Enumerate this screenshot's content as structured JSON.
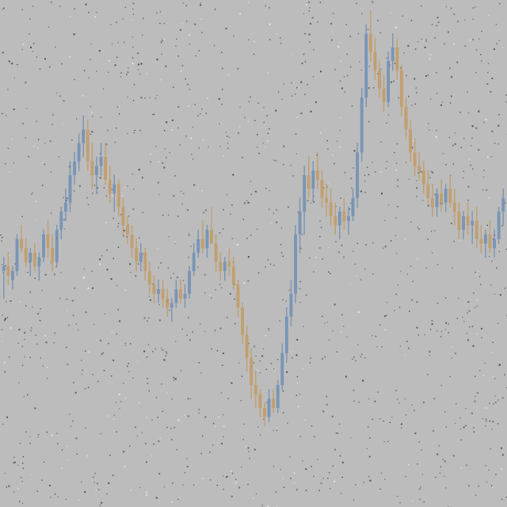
{
  "colors": {
    "background": "#bcbcbc",
    "noise": "#3a3a3a",
    "up": "#6f8fb4",
    "down": "#c29a62"
  },
  "chart_data": {
    "type": "candlestick",
    "title": "",
    "xlabel": "",
    "ylabel": "",
    "grid": false,
    "legend": "none",
    "ylim": [
      0,
      100
    ],
    "candles": [
      {
        "o": 42,
        "h": 45,
        "l": 36,
        "c": 43
      },
      {
        "o": 43,
        "h": 46,
        "l": 39,
        "c": 41
      },
      {
        "o": 40,
        "h": 43,
        "l": 38,
        "c": 42
      },
      {
        "o": 42,
        "h": 50,
        "l": 41,
        "c": 49
      },
      {
        "o": 49,
        "h": 52,
        "l": 46,
        "c": 47
      },
      {
        "o": 47,
        "h": 49,
        "l": 43,
        "c": 44
      },
      {
        "o": 44,
        "h": 47,
        "l": 41,
        "c": 46
      },
      {
        "o": 46,
        "h": 48,
        "l": 42,
        "c": 43
      },
      {
        "o": 43,
        "h": 46,
        "l": 40,
        "c": 45
      },
      {
        "o": 45,
        "h": 51,
        "l": 44,
        "c": 50
      },
      {
        "o": 50,
        "h": 53,
        "l": 45,
        "c": 47
      },
      {
        "o": 47,
        "h": 50,
        "l": 42,
        "c": 44
      },
      {
        "o": 44,
        "h": 52,
        "l": 43,
        "c": 51
      },
      {
        "o": 51,
        "h": 56,
        "l": 49,
        "c": 55
      },
      {
        "o": 55,
        "h": 60,
        "l": 53,
        "c": 57
      },
      {
        "o": 57,
        "h": 66,
        "l": 55,
        "c": 63
      },
      {
        "o": 63,
        "h": 68,
        "l": 61,
        "c": 66
      },
      {
        "o": 66,
        "h": 72,
        "l": 64,
        "c": 70
      },
      {
        "o": 70,
        "h": 76,
        "l": 67,
        "c": 73
      },
      {
        "o": 73,
        "h": 75,
        "l": 64,
        "c": 66
      },
      {
        "o": 66,
        "h": 70,
        "l": 60,
        "c": 63
      },
      {
        "o": 63,
        "h": 67,
        "l": 59,
        "c": 65
      },
      {
        "o": 65,
        "h": 70,
        "l": 63,
        "c": 67
      },
      {
        "o": 67,
        "h": 70,
        "l": 61,
        "c": 62
      },
      {
        "o": 62,
        "h": 65,
        "l": 57,
        "c": 59
      },
      {
        "o": 59,
        "h": 63,
        "l": 55,
        "c": 61
      },
      {
        "o": 61,
        "h": 62,
        "l": 54,
        "c": 56
      },
      {
        "o": 56,
        "h": 58,
        "l": 50,
        "c": 52
      },
      {
        "o": 52,
        "h": 54,
        "l": 48,
        "c": 50
      },
      {
        "o": 50,
        "h": 52,
        "l": 45,
        "c": 47
      },
      {
        "o": 47,
        "h": 49,
        "l": 42,
        "c": 44
      },
      {
        "o": 44,
        "h": 48,
        "l": 42,
        "c": 46
      },
      {
        "o": 46,
        "h": 47,
        "l": 40,
        "c": 42
      },
      {
        "o": 42,
        "h": 44,
        "l": 37,
        "c": 39
      },
      {
        "o": 39,
        "h": 41,
        "l": 35,
        "c": 37
      },
      {
        "o": 37,
        "h": 40,
        "l": 35,
        "c": 38
      },
      {
        "o": 38,
        "h": 40,
        "l": 34,
        "c": 36
      },
      {
        "o": 36,
        "h": 38,
        "l": 32,
        "c": 34
      },
      {
        "o": 34,
        "h": 36,
        "l": 31,
        "c": 35
      },
      {
        "o": 35,
        "h": 40,
        "l": 34,
        "c": 38
      },
      {
        "o": 38,
        "h": 40,
        "l": 35,
        "c": 36
      },
      {
        "o": 36,
        "h": 39,
        "l": 34,
        "c": 37
      },
      {
        "o": 37,
        "h": 43,
        "l": 36,
        "c": 42
      },
      {
        "o": 42,
        "h": 48,
        "l": 41,
        "c": 46
      },
      {
        "o": 46,
        "h": 51,
        "l": 45,
        "c": 49
      },
      {
        "o": 49,
        "h": 53,
        "l": 46,
        "c": 47
      },
      {
        "o": 47,
        "h": 52,
        "l": 45,
        "c": 51
      },
      {
        "o": 51,
        "h": 56,
        "l": 49,
        "c": 48
      },
      {
        "o": 48,
        "h": 50,
        "l": 42,
        "c": 44
      },
      {
        "o": 44,
        "h": 46,
        "l": 40,
        "c": 42
      },
      {
        "o": 42,
        "h": 45,
        "l": 40,
        "c": 44
      },
      {
        "o": 44,
        "h": 47,
        "l": 41,
        "c": 43
      },
      {
        "o": 43,
        "h": 45,
        "l": 38,
        "c": 39
      },
      {
        "o": 39,
        "h": 40,
        "l": 32,
        "c": 34
      },
      {
        "o": 34,
        "h": 35,
        "l": 26,
        "c": 28
      },
      {
        "o": 28,
        "h": 30,
        "l": 20,
        "c": 23
      },
      {
        "o": 23,
        "h": 25,
        "l": 14,
        "c": 17
      },
      {
        "o": 17,
        "h": 20,
        "l": 12,
        "c": 15
      },
      {
        "o": 15,
        "h": 16,
        "l": 10,
        "c": 12
      },
      {
        "o": 12,
        "h": 13,
        "l": 8,
        "c": 10
      },
      {
        "o": 10,
        "h": 16,
        "l": 9,
        "c": 14
      },
      {
        "o": 14,
        "h": 16,
        "l": 11,
        "c": 12
      },
      {
        "o": 12,
        "h": 18,
        "l": 11,
        "c": 17
      },
      {
        "o": 17,
        "h": 26,
        "l": 16,
        "c": 24
      },
      {
        "o": 24,
        "h": 34,
        "l": 22,
        "c": 32
      },
      {
        "o": 32,
        "h": 40,
        "l": 30,
        "c": 37
      },
      {
        "o": 37,
        "h": 52,
        "l": 35,
        "c": 50
      },
      {
        "o": 50,
        "h": 58,
        "l": 46,
        "c": 55
      },
      {
        "o": 55,
        "h": 65,
        "l": 50,
        "c": 63
      },
      {
        "o": 63,
        "h": 67,
        "l": 58,
        "c": 60
      },
      {
        "o": 60,
        "h": 66,
        "l": 57,
        "c": 64
      },
      {
        "o": 64,
        "h": 68,
        "l": 60,
        "c": 62
      },
      {
        "o": 62,
        "h": 64,
        "l": 56,
        "c": 58
      },
      {
        "o": 58,
        "h": 61,
        "l": 54,
        "c": 57
      },
      {
        "o": 57,
        "h": 60,
        "l": 52,
        "c": 54
      },
      {
        "o": 54,
        "h": 57,
        "l": 50,
        "c": 52
      },
      {
        "o": 52,
        "h": 56,
        "l": 49,
        "c": 55
      },
      {
        "o": 55,
        "h": 58,
        "l": 51,
        "c": 53
      },
      {
        "o": 53,
        "h": 56,
        "l": 50,
        "c": 54
      },
      {
        "o": 54,
        "h": 60,
        "l": 53,
        "c": 58
      },
      {
        "o": 58,
        "h": 70,
        "l": 56,
        "c": 68
      },
      {
        "o": 68,
        "h": 82,
        "l": 66,
        "c": 80
      },
      {
        "o": 80,
        "h": 96,
        "l": 78,
        "c": 94
      },
      {
        "o": 94,
        "h": 99,
        "l": 88,
        "c": 90
      },
      {
        "o": 90,
        "h": 93,
        "l": 84,
        "c": 86
      },
      {
        "o": 86,
        "h": 88,
        "l": 80,
        "c": 82
      },
      {
        "o": 82,
        "h": 85,
        "l": 77,
        "c": 79
      },
      {
        "o": 79,
        "h": 90,
        "l": 78,
        "c": 88
      },
      {
        "o": 88,
        "h": 94,
        "l": 86,
        "c": 91
      },
      {
        "o": 91,
        "h": 93,
        "l": 84,
        "c": 86
      },
      {
        "o": 86,
        "h": 87,
        "l": 76,
        "c": 78
      },
      {
        "o": 78,
        "h": 80,
        "l": 71,
        "c": 73
      },
      {
        "o": 73,
        "h": 75,
        "l": 66,
        "c": 68
      },
      {
        "o": 68,
        "h": 71,
        "l": 63,
        "c": 65
      },
      {
        "o": 65,
        "h": 68,
        "l": 62,
        "c": 64
      },
      {
        "o": 64,
        "h": 66,
        "l": 59,
        "c": 61
      },
      {
        "o": 61,
        "h": 64,
        "l": 57,
        "c": 58
      },
      {
        "o": 58,
        "h": 61,
        "l": 54,
        "c": 56
      },
      {
        "o": 56,
        "h": 60,
        "l": 54,
        "c": 59
      },
      {
        "o": 59,
        "h": 62,
        "l": 55,
        "c": 57
      },
      {
        "o": 57,
        "h": 61,
        "l": 55,
        "c": 60
      },
      {
        "o": 60,
        "h": 63,
        "l": 56,
        "c": 57
      },
      {
        "o": 57,
        "h": 60,
        "l": 52,
        "c": 55
      },
      {
        "o": 55,
        "h": 57,
        "l": 49,
        "c": 51
      },
      {
        "o": 51,
        "h": 55,
        "l": 49,
        "c": 54
      },
      {
        "o": 54,
        "h": 57,
        "l": 50,
        "c": 52
      },
      {
        "o": 52,
        "h": 55,
        "l": 48,
        "c": 53
      },
      {
        "o": 53,
        "h": 56,
        "l": 47,
        "c": 49
      },
      {
        "o": 49,
        "h": 52,
        "l": 46,
        "c": 48
      },
      {
        "o": 48,
        "h": 51,
        "l": 45,
        "c": 50
      },
      {
        "o": 50,
        "h": 53,
        "l": 46,
        "c": 47
      },
      {
        "o": 47,
        "h": 51,
        "l": 45,
        "c": 49
      },
      {
        "o": 49,
        "h": 56,
        "l": 48,
        "c": 55
      },
      {
        "o": 55,
        "h": 60,
        "l": 52,
        "c": 58
      }
    ]
  }
}
